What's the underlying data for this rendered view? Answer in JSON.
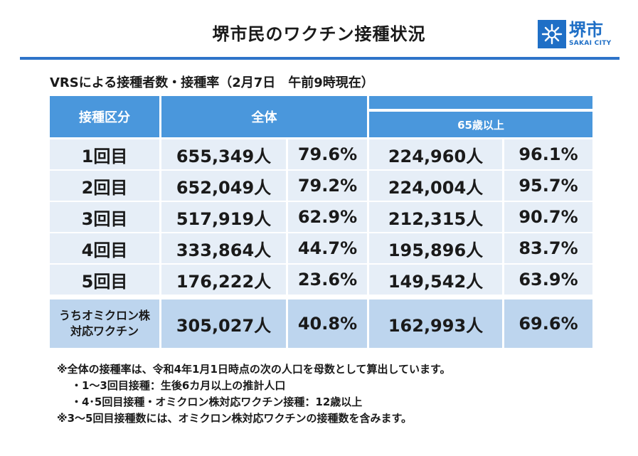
{
  "header": {
    "title": "堺市民のワクチン接種状況",
    "logo_name": "堺市",
    "logo_sub": "SAKAI CITY"
  },
  "subtitle": "VRSによる接種者数・接種率（2月7日　午前9時現在）",
  "table": {
    "columns": {
      "category": "接種区分",
      "all": "全体",
      "over65": "65歳以上"
    },
    "rows": [
      {
        "label": "1回目",
        "all_count": "655,349人",
        "all_rate": "79.6%",
        "o65_count": "224,960人",
        "o65_rate": "96.1%"
      },
      {
        "label": "2回目",
        "all_count": "652,049人",
        "all_rate": "79.2%",
        "o65_count": "224,004人",
        "o65_rate": "95.7%"
      },
      {
        "label": "3回目",
        "all_count": "517,919人",
        "all_rate": "62.9%",
        "o65_count": "212,315人",
        "o65_rate": "90.7%"
      },
      {
        "label": "4回目",
        "all_count": "333,864人",
        "all_rate": "44.7%",
        "o65_count": "195,896人",
        "o65_rate": "83.7%"
      },
      {
        "label": "5回目",
        "all_count": "176,222人",
        "all_rate": "23.6%",
        "o65_count": "149,542人",
        "o65_rate": "63.9%"
      }
    ],
    "last_row": {
      "label_line1": "うちオミクロン株",
      "label_line2": "対応ワクチン",
      "all_count": "305,027人",
      "all_rate": "40.8%",
      "o65_count": "162,993人",
      "o65_rate": "69.6%"
    }
  },
  "notes": [
    "※全体の接種率は、令和4年1月1日時点の次の人口を母数として算出しています。",
    "・1～3回目接種：生後6カ月以上の推計人口",
    "・4･5回目接種・オミクロン株対応ワクチン接種：12歳以上",
    "※3～5回目接種数には、オミクロン株対応ワクチンの接種数を含みます。"
  ],
  "colors": {
    "accent": "#2e74c9",
    "header_bg": "#4a97dc",
    "row_bg": "#e6eef7",
    "highlight_row_bg": "#bdd5ee"
  }
}
